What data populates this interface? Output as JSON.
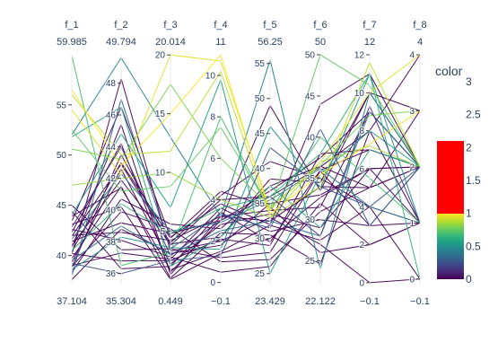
{
  "chart_data": {
    "type": "parallel_coordinates",
    "dimensions": [
      {
        "name": "f_1",
        "max_label": "59.985",
        "min_label": "37.104",
        "range": [
          37.104,
          59.985
        ],
        "ticks": [
          40,
          45,
          50,
          55
        ]
      },
      {
        "name": "f_2",
        "max_label": "49.794",
        "min_label": "35.304",
        "range": [
          35.304,
          49.794
        ],
        "ticks": [
          36,
          38,
          40,
          42,
          44,
          46,
          48
        ]
      },
      {
        "name": "f_3",
        "max_label": "20.014",
        "min_label": "0.449",
        "range": [
          0.449,
          20.014
        ],
        "ticks": [
          5,
          10,
          15,
          20
        ]
      },
      {
        "name": "f_4",
        "max_label": "11",
        "min_label": "−0.1",
        "range": [
          -0.1,
          11
        ],
        "ticks": [
          0,
          2,
          4,
          6,
          8,
          10
        ]
      },
      {
        "name": "f_5",
        "max_label": "56.25",
        "min_label": "23.429",
        "range": [
          23.429,
          56.25
        ],
        "ticks": [
          25,
          30,
          35,
          40,
          45,
          50,
          55
        ]
      },
      {
        "name": "f_6",
        "max_label": "50",
        "min_label": "22.122",
        "range": [
          22.122,
          50
        ],
        "ticks": [
          25,
          30,
          35,
          40,
          45,
          50
        ]
      },
      {
        "name": "f_7",
        "max_label": "12",
        "min_label": "−0.1",
        "range": [
          -0.1,
          12
        ],
        "ticks": [
          0,
          2,
          4,
          6,
          8,
          10,
          12
        ]
      },
      {
        "name": "f_8",
        "max_label": "4",
        "min_label": "−0.1",
        "range": [
          -0.1,
          4
        ],
        "ticks": [
          0,
          1,
          2,
          3,
          4
        ]
      }
    ],
    "lines": [
      {
        "c": 0,
        "v": [
          42.0,
          38.6,
          4.2,
          3.2,
          32.5,
          34.0,
          5.0,
          2.0
        ]
      },
      {
        "c": 0,
        "v": [
          40.2,
          36.8,
          2.5,
          2.1,
          29.0,
          38.0,
          7.0,
          2.0
        ]
      },
      {
        "c": 0,
        "v": [
          38.8,
          43.5,
          3.8,
          4.0,
          36.0,
          36.4,
          8.0,
          1.0
        ]
      },
      {
        "c": 0,
        "v": [
          43.9,
          41.4,
          1.7,
          1.5,
          31.9,
          27.5,
          4.0,
          0.0
        ]
      },
      {
        "c": 0,
        "v": [
          41.4,
          39.2,
          4.8,
          3.0,
          49.0,
          33.5,
          10.0,
          2.0
        ]
      },
      {
        "c": 0,
        "v": [
          39.3,
          42.6,
          2.2,
          2.8,
          33.5,
          29.0,
          6.0,
          1.0
        ]
      },
      {
        "c": 0,
        "v": [
          45.0,
          37.5,
          3.5,
          1.2,
          28.0,
          35.9,
          3.0,
          2.0
        ]
      },
      {
        "c": 0,
        "v": [
          40.8,
          45.4,
          1.3,
          3.2,
          34.0,
          31.5,
          9.0,
          2.0
        ]
      },
      {
        "c": 0,
        "v": [
          38.3,
          40.7,
          5.6,
          2.6,
          37.5,
          36.5,
          5.0,
          3.0
        ]
      },
      {
        "c": 0,
        "v": [
          42.6,
          38.1,
          2.8,
          0.5,
          26.0,
          32.0,
          2.0,
          1.0
        ]
      },
      {
        "c": 0,
        "v": [
          43.4,
          46.5,
          4.5,
          3.8,
          32.0,
          44.0,
          11.0,
          2.0
        ]
      },
      {
        "c": 0,
        "v": [
          39.7,
          41.5,
          1.0,
          2.4,
          30.5,
          24.6,
          8.0,
          4.0
        ]
      },
      {
        "c": 0,
        "v": [
          37.6,
          38.8,
          3.1,
          1.8,
          35.0,
          33.0,
          6.0,
          2.0
        ]
      },
      {
        "c": 0,
        "v": [
          41.9,
          42.9,
          4.0,
          4.2,
          41.0,
          35.0,
          4.0,
          1.0
        ]
      },
      {
        "c": 0,
        "v": [
          44.4,
          36.3,
          2.0,
          3.4,
          29.5,
          36.0,
          7.0,
          2.0
        ]
      },
      {
        "c": 0,
        "v": [
          40.1,
          48.3,
          3.3,
          2.0,
          33.0,
          27.0,
          0.0,
          0.0
        ]
      },
      {
        "c": 0,
        "v": [
          38.9,
          39.9,
          5.2,
          1.0,
          27.0,
          31.0,
          5.0,
          2.0
        ]
      },
      {
        "c": 0,
        "v": [
          42.3,
          44.2,
          1.5,
          3.0,
          36.8,
          37.5,
          9.0,
          2.0
        ]
      },
      {
        "c": 0,
        "v": [
          39.0,
          37.3,
          2.6,
          3.6,
          31.0,
          30.0,
          3.0,
          1.0
        ]
      },
      {
        "c": 0,
        "v": [
          41.0,
          41.9,
          3.9,
          2.2,
          38.5,
          34.5,
          10.0,
          3.0
        ]
      },
      {
        "c": 0,
        "v": [
          43.1,
          40.2,
          0.9,
          1.4,
          30.0,
          32.7,
          6.0,
          2.0
        ]
      },
      {
        "c": 0,
        "v": [
          40.4,
          43.0,
          4.4,
          4.4,
          34.5,
          26.0,
          2.0,
          1.0
        ]
      },
      {
        "c": 0.35,
        "v": [
          39.5,
          39.0,
          3.0,
          2.5,
          32.5,
          28.0,
          9.0,
          2.0
        ]
      },
      {
        "c": 0.4,
        "v": [
          41.6,
          42.3,
          5.0,
          2.9,
          35.5,
          36.2,
          4.0,
          1.0
        ]
      },
      {
        "c": 0.45,
        "v": [
          52.0,
          49.6,
          13.0,
          3.2,
          55.5,
          24.0,
          10.0,
          2.0
        ]
      },
      {
        "c": 0.5,
        "v": [
          38.6,
          38.3,
          3.6,
          1.6,
          46.0,
          33.8,
          11.0,
          1.0
        ]
      },
      {
        "c": 0.55,
        "v": [
          44.0,
          44.8,
          7.0,
          9.8,
          25.0,
          35.5,
          8.0,
          2.0
        ]
      },
      {
        "c": 0.6,
        "v": [
          51.8,
          46.5,
          2.0,
          2.2,
          37.5,
          29.0,
          7.0,
          2.0
        ]
      },
      {
        "c": 0.65,
        "v": [
          40.5,
          40.4,
          4.8,
          3.6,
          36.0,
          38.0,
          11.0,
          0.0
        ]
      },
      {
        "c": 0.7,
        "v": [
          59.9,
          36.5,
          3.2,
          8.0,
          34.0,
          40.0,
          5.5,
          1.0
        ]
      },
      {
        "c": 0.75,
        "v": [
          52.5,
          41.2,
          8.8,
          7.5,
          34.2,
          50.0,
          10.4,
          2.0
        ]
      },
      {
        "c": 0.8,
        "v": [
          50.6,
          43.2,
          17.5,
          6.0,
          34.5,
          36.6,
          8.8,
          3.0
        ]
      },
      {
        "c": 0.85,
        "v": [
          47.0,
          42.0,
          10.0,
          4.0,
          33.0,
          37.0,
          7.2,
          2.0
        ]
      },
      {
        "c": 0.9,
        "v": [
          56.0,
          43.5,
          11.8,
          10.2,
          33.0,
          34.0,
          11.6,
          2.0
        ]
      },
      {
        "c": 0.95,
        "v": [
          54.5,
          42.2,
          20.0,
          10.7,
          34.0,
          37.0,
          10.0,
          4.0
        ]
      },
      {
        "c": 1.0,
        "v": [
          56.5,
          42.8,
          15.0,
          11.0,
          33.5,
          35.5,
          7.3,
          3.0
        ]
      },
      {
        "c": 0.25,
        "v": [
          39.2,
          36.0,
          2.5,
          1.3,
          43.0,
          34.0,
          4.0,
          2.0
        ]
      },
      {
        "c": 0.3,
        "v": [
          38.0,
          47.0,
          3.5,
          3.3,
          31.5,
          41.0,
          3.0,
          2.0
        ]
      },
      {
        "c": 0.15,
        "v": [
          42.8,
          44.0,
          2.9,
          3.0,
          36.0,
          28.0,
          9.3,
          1.0
        ]
      }
    ],
    "colorbar": {
      "title": "color",
      "ticks": [
        "3",
        "2.5",
        "2",
        "1.5",
        "1",
        "0.5",
        "0"
      ],
      "tick_values": [
        3,
        2.5,
        2,
        1.5,
        1,
        0.5,
        0
      ],
      "range": [
        0,
        3
      ],
      "viridis_max": 1,
      "above_color": "#ff0000"
    },
    "colorscale": [
      "#440154",
      "#482878",
      "#3e4989",
      "#31688e",
      "#26828e",
      "#1f9e89",
      "#35b779",
      "#6ece58",
      "#b5de2b",
      "#fde725"
    ]
  }
}
